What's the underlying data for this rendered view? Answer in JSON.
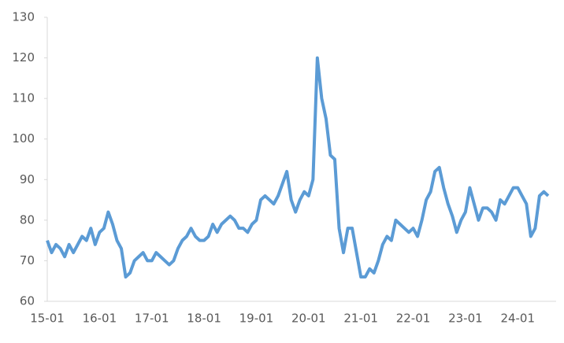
{
  "chart_data": {
    "type": "line",
    "categories": [
      "15-01",
      null,
      null,
      null,
      null,
      null,
      null,
      null,
      null,
      null,
      null,
      null,
      "16-01",
      null,
      null,
      null,
      null,
      null,
      null,
      null,
      null,
      null,
      null,
      null,
      "17-01",
      null,
      null,
      null,
      null,
      null,
      null,
      null,
      null,
      null,
      null,
      null,
      "18-01",
      null,
      null,
      null,
      null,
      null,
      null,
      null,
      null,
      null,
      null,
      null,
      "19-01",
      null,
      null,
      null,
      null,
      null,
      null,
      null,
      null,
      null,
      null,
      null,
      "20-01",
      null,
      null,
      null,
      null,
      null,
      null,
      null,
      null,
      null,
      null,
      null,
      "21-01",
      null,
      null,
      null,
      null,
      null,
      null,
      null,
      null,
      null,
      null,
      null,
      "22-01",
      null,
      null,
      null,
      null,
      null,
      null,
      null,
      null,
      null,
      null,
      null,
      "23-01",
      null,
      null,
      null,
      null,
      null,
      null,
      null,
      null,
      null,
      null,
      null,
      "24-01",
      null,
      null,
      null,
      null,
      null,
      null,
      null
    ],
    "series": [
      {
        "color": "#5b9bd5",
        "values": [
          75,
          72,
          74,
          73,
          71,
          74,
          72,
          74,
          76,
          75,
          78,
          74,
          77,
          78,
          82,
          79,
          75,
          73,
          66,
          67,
          70,
          71,
          72,
          70,
          70,
          72,
          71,
          70,
          69,
          70,
          73,
          75,
          76,
          78,
          76,
          75,
          75,
          76,
          79,
          77,
          79,
          80,
          81,
          80,
          78,
          78,
          77,
          79,
          80,
          85,
          86,
          85,
          84,
          86,
          89,
          92,
          85,
          82,
          85,
          87,
          86,
          90,
          120,
          110,
          105,
          96,
          95,
          78,
          72,
          78,
          78,
          72,
          66,
          66,
          68,
          67,
          70,
          74,
          76,
          75,
          80,
          79,
          78,
          77,
          78,
          76,
          80,
          85,
          87,
          92,
          93,
          88,
          84,
          81,
          77,
          80,
          82,
          88,
          84,
          80,
          83,
          83,
          82,
          80,
          85,
          84,
          86,
          88,
          88,
          86,
          84,
          76,
          78,
          86,
          87,
          86
        ]
      }
    ],
    "ylim": [
      60,
      130
    ],
    "yticks": [
      60,
      70,
      80,
      90,
      100,
      110,
      120,
      130
    ]
  }
}
